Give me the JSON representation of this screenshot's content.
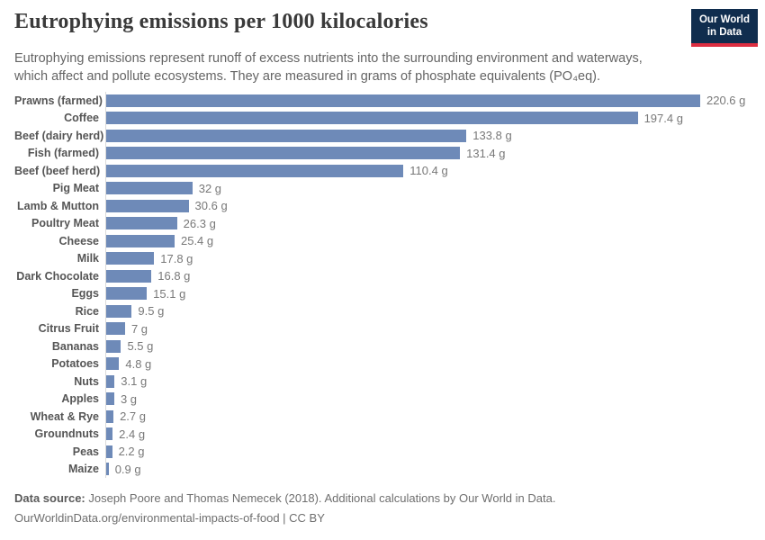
{
  "header": {
    "title": "Eutrophying emissions per 1000 kilocalories",
    "subtitle": "Eutrophying emissions represent runoff of excess nutrients into the surrounding environment and waterways,\nwhich affect and pollute ecosystems. They are measured in grams of phosphate equivalents (PO₄eq)."
  },
  "logo": {
    "line1": "Our World",
    "line2": "in Data",
    "bg_color": "#102d4e",
    "accent_color": "#dc2e41",
    "text_color": "#ffffff"
  },
  "chart_data": {
    "type": "bar",
    "orientation": "horizontal",
    "title": "Eutrophying emissions per 1000 kilocalories",
    "unit": "g",
    "xlim": [
      0,
      220.6
    ],
    "grid": false,
    "value_label_position": "end-of-bar",
    "bar_color": "#6e8ab8",
    "axis_line_color": "#d9d9d9",
    "categories": [
      "Prawns (farmed)",
      "Coffee",
      "Beef (dairy herd)",
      "Fish (farmed)",
      "Beef (beef herd)",
      "Pig Meat",
      "Lamb & Mutton",
      "Poultry Meat",
      "Cheese",
      "Milk",
      "Dark Chocolate",
      "Eggs",
      "Rice",
      "Citrus Fruit",
      "Bananas",
      "Potatoes",
      "Nuts",
      "Apples",
      "Wheat & Rye",
      "Groundnuts",
      "Peas",
      "Maize"
    ],
    "values": [
      220.6,
      197.4,
      133.8,
      131.4,
      110.4,
      32,
      30.6,
      26.3,
      25.4,
      17.8,
      16.8,
      15.1,
      9.5,
      7,
      5.5,
      4.8,
      3.1,
      3,
      2.7,
      2.4,
      2.2,
      0.9
    ],
    "display_values": [
      "220.6 g",
      "197.4 g",
      "133.8 g",
      "131.4 g",
      "110.4 g",
      "32 g",
      "30.6 g",
      "26.3 g",
      "25.4 g",
      "17.8 g",
      "16.8 g",
      "15.1 g",
      "9.5 g",
      "7 g",
      "5.5 g",
      "4.8 g",
      "3.1 g",
      "3 g",
      "2.7 g",
      "2.4 g",
      "2.2 g",
      "0.9 g"
    ]
  },
  "footer": {
    "source_label": "Data source:",
    "source_text": " Joseph Poore and Thomas Nemecek (2018). Additional calculations by Our World in Data.",
    "link_line": "OurWorldinData.org/environmental-impacts-of-food | CC BY"
  }
}
